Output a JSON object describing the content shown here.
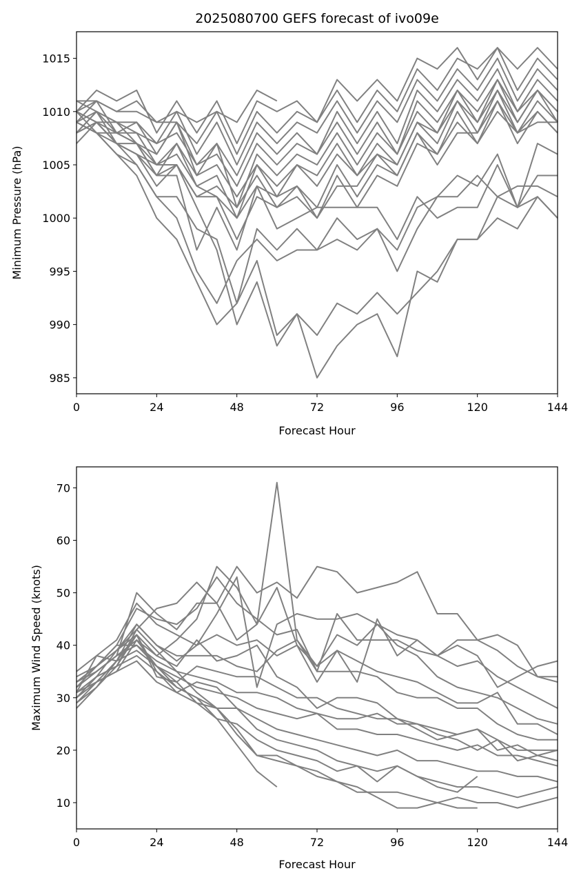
{
  "figure": {
    "title": "2025080700 GEFS forecast of ivo09e",
    "line_color": "#808080"
  },
  "chart_data": [
    {
      "type": "line",
      "title": "2025080700 GEFS forecast of ivo09e",
      "xlabel": "Forecast Hour",
      "ylabel": "Minimum Pressure (hPa)",
      "xlim": [
        0,
        144
      ],
      "ylim": [
        983.5,
        1017.5
      ],
      "xticks": [
        0,
        24,
        48,
        72,
        96,
        120,
        144
      ],
      "yticks": [
        985,
        990,
        995,
        1000,
        1005,
        1010,
        1015
      ],
      "grid": false,
      "legend": "none",
      "x": [
        0,
        6,
        12,
        18,
        24,
        30,
        36,
        42,
        48,
        54,
        60,
        66,
        72,
        78,
        84,
        90,
        96,
        102,
        108,
        114,
        120,
        126,
        132,
        138,
        144
      ],
      "series": [
        {
          "values": [
            1011,
            1011,
            1010,
            1010,
            1009,
            1010,
            1009,
            1010,
            1009,
            1012,
            1011,
            null,
            null,
            null,
            null,
            null,
            null,
            null,
            null,
            null,
            null,
            null,
            null,
            null,
            null
          ]
        },
        {
          "values": [
            1010,
            1012,
            1011,
            1012,
            1008,
            1011,
            1008,
            1011,
            1007,
            1011,
            1010,
            1011,
            1009,
            1013,
            1011,
            1013,
            1011,
            1015,
            1014,
            1016,
            1013,
            1016,
            1014,
            1016,
            1014
          ]
        },
        {
          "values": [
            1010,
            1011,
            1010,
            1011,
            1009,
            1009,
            1007,
            1010,
            1006,
            1010,
            1008,
            1010,
            1009,
            1012,
            1009,
            1012,
            1010,
            1014,
            1012,
            1015,
            1014,
            1016,
            1012,
            1015,
            1013
          ]
        },
        {
          "values": [
            1009,
            1010,
            1009,
            1009,
            1007,
            1010,
            1006,
            1009,
            1005,
            1009,
            1007,
            1009,
            1008,
            1011,
            1008,
            1011,
            1009,
            1013,
            1011,
            1014,
            1012,
            1015,
            1011,
            1014,
            1012
          ]
        },
        {
          "values": [
            1008,
            1010,
            1009,
            1008,
            1007,
            1008,
            1005,
            1007,
            1004,
            1008,
            1006,
            1008,
            1006,
            1010,
            1007,
            1010,
            1007,
            1012,
            1010,
            1013,
            1011,
            1014,
            1010,
            1013,
            1011
          ]
        },
        {
          "values": [
            1009,
            1011,
            1008,
            1009,
            1006,
            1009,
            1005,
            1006,
            1003,
            1007,
            1005,
            1007,
            1006,
            1009,
            1006,
            1009,
            1006,
            1011,
            1009,
            1012,
            1010,
            1013,
            1010,
            1012,
            1010
          ]
        },
        {
          "values": [
            1010,
            1009,
            1009,
            1007,
            1006,
            1009,
            1004,
            1007,
            1001,
            1006,
            1004,
            1006,
            1005,
            1008,
            1005,
            1008,
            1006,
            1010,
            1008,
            1012,
            1009,
            1012,
            1009,
            1012,
            1009
          ]
        },
        {
          "values": [
            1008,
            1010,
            1008,
            1008,
            1005,
            1007,
            1004,
            1005,
            1002,
            1005,
            1003,
            1005,
            1004,
            1007,
            1004,
            1007,
            1005,
            1009,
            1008,
            1011,
            1009,
            1013,
            1009,
            1012,
            1010
          ]
        },
        {
          "values": [
            1007,
            1009,
            1007,
            1007,
            1004,
            1007,
            1003,
            1004,
            1000,
            1005,
            1002,
            1005,
            1003,
            1006,
            1004,
            1006,
            1005,
            1009,
            1007,
            1011,
            1008,
            1012,
            1008,
            1011,
            1009
          ]
        },
        {
          "values": [
            1009,
            1008,
            1008,
            1007,
            1004,
            1005,
            1002,
            1003,
            1001,
            1004,
            1001,
            1003,
            1001,
            1005,
            1002,
            1005,
            1004,
            1008,
            1006,
            1010,
            1007,
            1011,
            1007,
            1010,
            1008
          ]
        },
        {
          "values": [
            1010,
            1009,
            1007,
            1006,
            1003,
            1005,
            1002,
            1002,
            1000,
            1003,
            1002,
            1003,
            1000,
            1004,
            1001,
            1004,
            1003,
            1007,
            1006,
            1009,
            1007,
            1010,
            1008,
            1010,
            1008
          ]
        },
        {
          "values": [
            1008,
            1009,
            1008,
            1007,
            1005,
            1006,
            1003,
            1002,
            998,
            1002,
            1001,
            1002,
            1000,
            1003,
            1003,
            1006,
            1004,
            1008,
            1005,
            1008,
            1008,
            1011,
            1008,
            1009,
            1009
          ]
        },
        {
          "values": [
            1011,
            1010,
            1007,
            1006,
            1004,
            1004,
            997,
            1001,
            997,
            1003,
            999,
            1000,
            1001,
            1001,
            1001,
            1001,
            998,
            1002,
            1000,
            1001,
            1001,
            1005,
            1001,
            1007,
            1006
          ]
        },
        {
          "values": [
            1008,
            1009,
            1007,
            1005,
            1002,
            1002,
            999,
            998,
            992,
            999,
            997,
            999,
            997,
            998,
            997,
            999,
            997,
            1001,
            1002,
            1004,
            1003,
            1006,
            1001,
            1004,
            1004
          ]
        },
        {
          "values": [
            1009,
            1008,
            1006,
            1005,
            1002,
            1000,
            995,
            992,
            996,
            998,
            996,
            997,
            997,
            1000,
            998,
            999,
            995,
            999,
            1002,
            1002,
            1004,
            1002,
            1003,
            1003,
            1002
          ]
        },
        {
          "values": [
            1010,
            1008,
            1006,
            1004,
            1000,
            998,
            994,
            990,
            992,
            996,
            989,
            991,
            985,
            988,
            990,
            991,
            987,
            995,
            994,
            998,
            998,
            1002,
            1001,
            1002,
            1000
          ]
        },
        {
          "values": [
            1009,
            1008,
            1007,
            1006,
            1005,
            1005,
            1001,
            997,
            990,
            994,
            988,
            991,
            989,
            992,
            991,
            993,
            991,
            993,
            995,
            998,
            998,
            1000,
            999,
            1002,
            1000
          ]
        }
      ]
    },
    {
      "type": "line",
      "xlabel": "Forecast Hour",
      "ylabel": "Maximum Wind Speed (knots)",
      "xlim": [
        0,
        144
      ],
      "ylim": [
        5,
        74
      ],
      "xticks": [
        0,
        24,
        48,
        72,
        96,
        120,
        144
      ],
      "yticks": [
        10,
        20,
        30,
        40,
        50,
        60,
        70
      ],
      "grid": false,
      "legend": "none",
      "x": [
        0,
        6,
        12,
        18,
        24,
        30,
        36,
        42,
        48,
        54,
        60,
        66,
        72,
        78,
        84,
        90,
        96,
        102,
        108,
        114,
        120,
        126,
        132,
        138,
        144
      ],
      "series": [
        {
          "values": [
            34,
            36,
            39,
            42,
            38,
            41,
            45,
            55,
            51,
            44,
            71,
            41,
            36,
            39,
            33,
            45,
            38,
            41,
            38,
            40,
            38,
            32,
            34,
            36,
            37
          ]
        },
        {
          "values": [
            30,
            34,
            36,
            43,
            47,
            48,
            52,
            48,
            55,
            50,
            52,
            49,
            55,
            54,
            50,
            51,
            52,
            54,
            46,
            46,
            41,
            39,
            36,
            34,
            34
          ]
        },
        {
          "values": [
            32,
            35,
            38,
            50,
            46,
            43,
            48,
            48,
            41,
            44,
            51,
            40,
            36,
            42,
            40,
            44,
            42,
            41,
            38,
            41,
            41,
            42,
            40,
            34,
            33
          ]
        },
        {
          "values": [
            33,
            36,
            40,
            47,
            45,
            44,
            47,
            53,
            48,
            45,
            42,
            43,
            35,
            46,
            41,
            41,
            41,
            39,
            38,
            36,
            37,
            34,
            32,
            30,
            28
          ]
        },
        {
          "values": [
            31,
            38,
            41,
            48,
            44,
            42,
            40,
            46,
            53,
            32,
            44,
            46,
            45,
            45,
            46,
            44,
            40,
            38,
            34,
            32,
            31,
            30,
            28,
            26,
            25
          ]
        },
        {
          "values": [
            29,
            33,
            37,
            44,
            40,
            37,
            40,
            42,
            40,
            41,
            38,
            40,
            33,
            39,
            37,
            35,
            34,
            33,
            31,
            29,
            29,
            31,
            25,
            25,
            23
          ]
        },
        {
          "values": [
            30,
            34,
            39,
            44,
            40,
            38,
            38,
            38,
            36,
            35,
            39,
            41,
            35,
            35,
            35,
            34,
            31,
            30,
            30,
            28,
            28,
            25,
            23,
            22,
            22
          ]
        },
        {
          "values": [
            33,
            35,
            38,
            41,
            38,
            36,
            41,
            37,
            38,
            40,
            34,
            32,
            28,
            30,
            30,
            29,
            26,
            24,
            22,
            23,
            24,
            22,
            20,
            20,
            20
          ]
        },
        {
          "values": [
            28,
            32,
            36,
            42,
            34,
            33,
            36,
            35,
            34,
            34,
            32,
            30,
            30,
            28,
            27,
            26,
            26,
            25,
            24,
            23,
            24,
            20,
            21,
            19,
            20
          ]
        },
        {
          "values": [
            32,
            36,
            40,
            40,
            37,
            35,
            34,
            33,
            31,
            31,
            30,
            28,
            27,
            26,
            26,
            27,
            25,
            25,
            23,
            22,
            20,
            22,
            18,
            19,
            18
          ]
        },
        {
          "values": [
            35,
            38,
            37,
            39,
            36,
            34,
            32,
            31,
            30,
            28,
            27,
            26,
            27,
            24,
            24,
            23,
            23,
            22,
            21,
            20,
            21,
            19,
            19,
            18,
            17
          ]
        },
        {
          "values": [
            31,
            34,
            36,
            38,
            35,
            32,
            30,
            28,
            28,
            26,
            24,
            23,
            22,
            21,
            20,
            19,
            20,
            18,
            18,
            17,
            16,
            16,
            15,
            15,
            14
          ]
        },
        {
          "values": [
            30,
            33,
            35,
            37,
            33,
            31,
            29,
            26,
            25,
            22,
            20,
            19,
            18,
            16,
            17,
            16,
            17,
            15,
            14,
            13,
            13,
            12,
            11,
            12,
            13
          ]
        },
        {
          "values": [
            32,
            35,
            38,
            40,
            36,
            33,
            29,
            28,
            24,
            19,
            18,
            17,
            16,
            14,
            12,
            12,
            12,
            11,
            10,
            11,
            10,
            10,
            9,
            10,
            11
          ]
        },
        {
          "values": [
            33,
            36,
            39,
            43,
            39,
            35,
            31,
            28,
            23,
            19,
            19,
            17,
            15,
            14,
            13,
            11,
            9,
            9,
            10,
            9,
            9,
            null,
            null,
            null,
            null
          ]
        },
        {
          "values": [
            31,
            33,
            35,
            41,
            36,
            32,
            30,
            26,
            21,
            16,
            13,
            null,
            null,
            null,
            null,
            null,
            null,
            null,
            null,
            null,
            null,
            null,
            null,
            null,
            null
          ]
        },
        {
          "values": [
            29,
            32,
            37,
            42,
            35,
            31,
            33,
            32,
            28,
            24,
            22,
            21,
            20,
            18,
            17,
            14,
            17,
            15,
            13,
            12,
            15,
            null,
            null,
            null,
            null
          ]
        }
      ]
    }
  ]
}
